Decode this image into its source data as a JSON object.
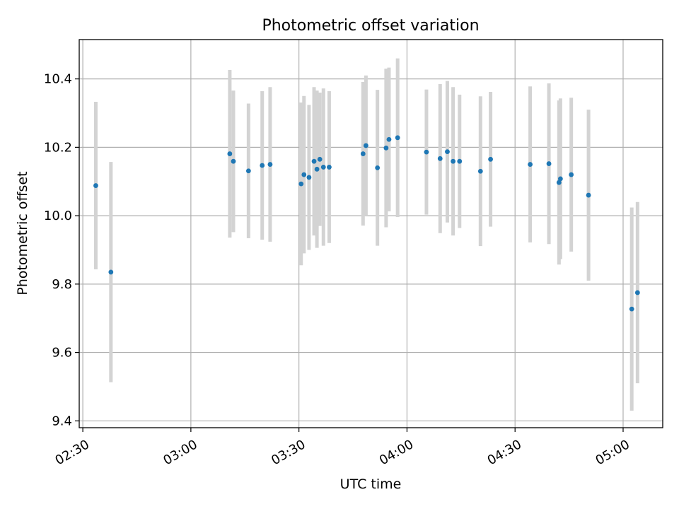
{
  "chart_data": {
    "type": "scatter",
    "title": "Photometric offset variation",
    "xlabel": "UTC time",
    "ylabel": "Photometric offset",
    "x_is_time": true,
    "xlim": [
      "02:29",
      "05:11"
    ],
    "ylim": [
      9.38,
      10.515
    ],
    "yticks": [
      9.4,
      9.6,
      9.8,
      10.0,
      10.2,
      10.4
    ],
    "ytick_labels": [
      "9.4",
      "9.6",
      "9.8",
      "10.0",
      "10.2",
      "10.4"
    ],
    "xticks": [
      "02:30",
      "03:00",
      "03:30",
      "04:00",
      "04:30",
      "05:00"
    ],
    "xtick_labels": [
      "02:30",
      "03:00",
      "03:30",
      "04:00",
      "04:30",
      "05:00"
    ],
    "grid": true,
    "point_color": "#1f77b4",
    "errorbar_color": "#d3d3d3",
    "series": [
      {
        "points": [
          {
            "x": "02:33:36",
            "y": 10.088,
            "err": 0.245
          },
          {
            "x": "02:37:48",
            "y": 9.835,
            "err": 0.322
          },
          {
            "x": "03:10:48",
            "y": 10.181,
            "err": 0.245
          },
          {
            "x": "03:11:48",
            "y": 10.159,
            "err": 0.207
          },
          {
            "x": "03:16:00",
            "y": 10.131,
            "err": 0.197
          },
          {
            "x": "03:19:48",
            "y": 10.147,
            "err": 0.217
          },
          {
            "x": "03:22:00",
            "y": 10.15,
            "err": 0.226
          },
          {
            "x": "03:30:36",
            "y": 10.093,
            "err": 0.238
          },
          {
            "x": "03:31:24",
            "y": 10.12,
            "err": 0.23
          },
          {
            "x": "03:32:48",
            "y": 10.112,
            "err": 0.212
          },
          {
            "x": "03:34:12",
            "y": 10.159,
            "err": 0.217
          },
          {
            "x": "03:35:00",
            "y": 10.136,
            "err": 0.23
          },
          {
            "x": "03:35:48",
            "y": 10.165,
            "err": 0.195
          },
          {
            "x": "03:36:48",
            "y": 10.142,
            "err": 0.23
          },
          {
            "x": "03:38:24",
            "y": 10.142,
            "err": 0.222
          },
          {
            "x": "03:47:48",
            "y": 10.181,
            "err": 0.21
          },
          {
            "x": "03:48:36",
            "y": 10.205,
            "err": 0.205
          },
          {
            "x": "03:51:48",
            "y": 10.14,
            "err": 0.228
          },
          {
            "x": "03:54:12",
            "y": 10.198,
            "err": 0.232
          },
          {
            "x": "03:55:00",
            "y": 10.223,
            "err": 0.21
          },
          {
            "x": "03:57:24",
            "y": 10.228,
            "err": 0.232
          },
          {
            "x": "04:05:24",
            "y": 10.186,
            "err": 0.183
          },
          {
            "x": "04:09:12",
            "y": 10.167,
            "err": 0.218
          },
          {
            "x": "04:11:12",
            "y": 10.187,
            "err": 0.207
          },
          {
            "x": "04:12:48",
            "y": 10.159,
            "err": 0.217
          },
          {
            "x": "04:14:36",
            "y": 10.159,
            "err": 0.195
          },
          {
            "x": "04:20:24",
            "y": 10.13,
            "err": 0.219
          },
          {
            "x": "04:23:12",
            "y": 10.165,
            "err": 0.197
          },
          {
            "x": "04:34:12",
            "y": 10.15,
            "err": 0.228
          },
          {
            "x": "04:39:24",
            "y": 10.152,
            "err": 0.235
          },
          {
            "x": "04:42:12",
            "y": 10.097,
            "err": 0.24
          },
          {
            "x": "04:42:36",
            "y": 10.108,
            "err": 0.235
          },
          {
            "x": "04:45:36",
            "y": 10.12,
            "err": 0.225
          },
          {
            "x": "04:50:24",
            "y": 10.06,
            "err": 0.25
          },
          {
            "x": "05:02:24",
            "y": 9.727,
            "err": 0.297
          },
          {
            "x": "05:04:00",
            "y": 9.775,
            "err": 0.265
          }
        ]
      }
    ]
  }
}
